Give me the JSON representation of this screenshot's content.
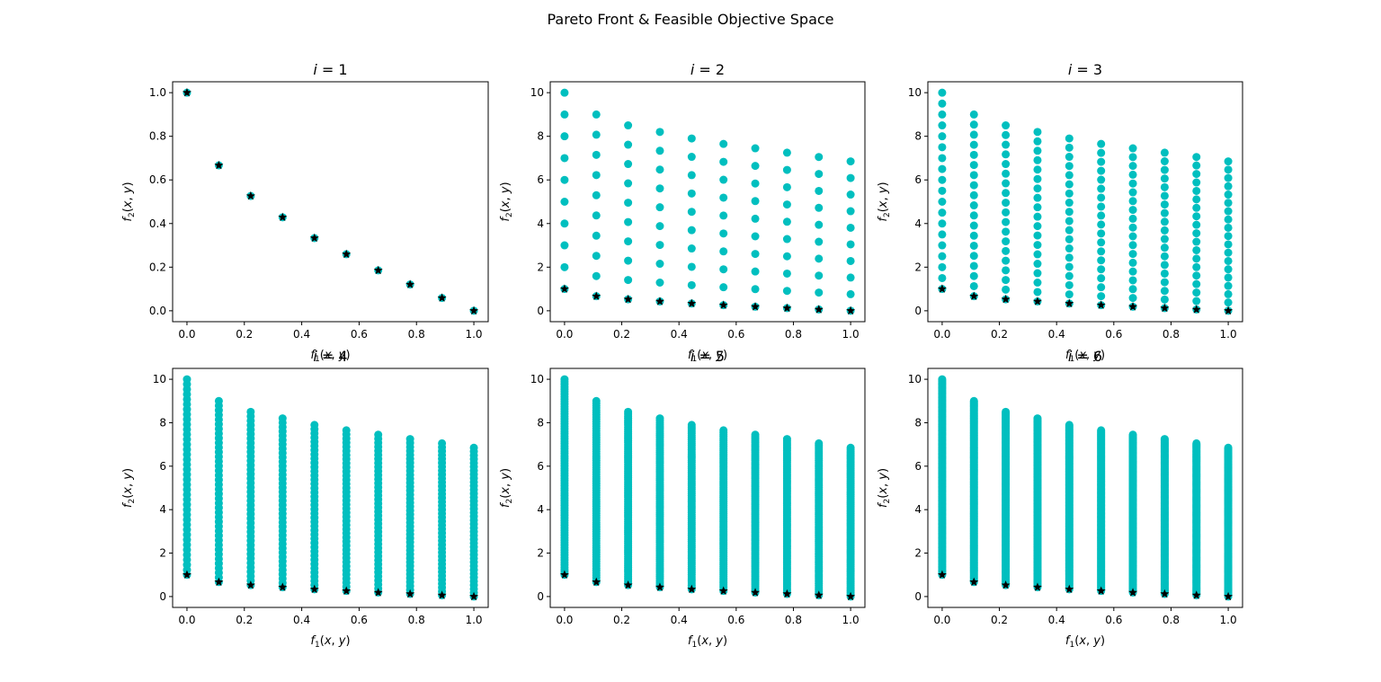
{
  "figure": {
    "title": "Pareto Front & Feasible Objective Space"
  },
  "colors": {
    "feasible": "#00bfbf",
    "pareto": "#000000",
    "axes": "#000000"
  },
  "chart_data": [
    {
      "type": "scatter",
      "title": "i = 1",
      "title_var": "i",
      "title_value": "1",
      "xlabel": "f1(x, y)",
      "ylabel": "f2(x, y)",
      "xlim": [
        -0.05,
        1.05
      ],
      "ylim": [
        -0.05,
        1.05
      ],
      "xticks": [
        "0.0",
        "0.2",
        "0.4",
        "0.6",
        "0.8",
        "1.0"
      ],
      "yticks": [
        "0.0",
        "0.2",
        "0.4",
        "0.6",
        "0.8",
        "1.0"
      ],
      "series": [
        {
          "marker": "circle",
          "x": [
            0.0,
            0.1111,
            0.2222,
            0.3333,
            0.4444,
            0.5556,
            0.6667,
            0.7778,
            0.8889,
            1.0
          ],
          "y": [
            1.0,
            0.6667,
            0.5263,
            0.4286,
            0.3333,
            0.2593,
            0.1852,
            0.1206,
            0.0588,
            0.0
          ]
        },
        {
          "marker": "star",
          "x": [
            0.0,
            0.1111,
            0.2222,
            0.3333,
            0.4444,
            0.5556,
            0.6667,
            0.7778,
            0.8889,
            1.0
          ],
          "y": [
            1.0,
            0.6667,
            0.5263,
            0.4286,
            0.3333,
            0.2593,
            0.1852,
            0.1206,
            0.0588,
            0.0
          ]
        }
      ]
    },
    {
      "type": "scatter",
      "title": "i = 2",
      "title_var": "i",
      "title_value": "2",
      "xlabel": "f1(x, y)",
      "ylabel": "f2(x, y)",
      "xlim": [
        -0.05,
        1.05
      ],
      "ylim": [
        -0.5,
        10.5
      ],
      "xticks": [
        "0.0",
        "0.2",
        "0.4",
        "0.6",
        "0.8",
        "1.0"
      ],
      "yticks": [
        "0",
        "2",
        "4",
        "6",
        "8",
        "10"
      ],
      "columns": {
        "x": [
          0.0,
          0.1111,
          0.2222,
          0.3333,
          0.4444,
          0.5556,
          0.6667,
          0.7778,
          0.8889,
          1.0
        ],
        "y_min": [
          1.0,
          0.6667,
          0.5263,
          0.4286,
          0.3333,
          0.2593,
          0.1852,
          0.1206,
          0.0588,
          0.0
        ],
        "y_max": [
          10.0,
          9.0,
          8.5,
          8.2,
          7.9,
          7.65,
          7.45,
          7.25,
          7.05,
          6.85
        ],
        "points_per_column": 10
      },
      "series": [
        {
          "marker": "circle",
          "data": "columns"
        },
        {
          "marker": "star",
          "x": [
            0.0,
            0.1111,
            0.2222,
            0.3333,
            0.4444,
            0.5556,
            0.6667,
            0.7778,
            0.8889,
            1.0
          ],
          "y": [
            1.0,
            0.6667,
            0.5263,
            0.4286,
            0.3333,
            0.2593,
            0.1852,
            0.1206,
            0.0588,
            0.0
          ]
        }
      ]
    },
    {
      "type": "scatter",
      "title": "i = 3",
      "title_var": "i",
      "title_value": "3",
      "xlabel": "f1(x, y)",
      "ylabel": "f2(x, y)",
      "xlim": [
        -0.05,
        1.05
      ],
      "ylim": [
        -0.5,
        10.5
      ],
      "xticks": [
        "0.0",
        "0.2",
        "0.4",
        "0.6",
        "0.8",
        "1.0"
      ],
      "yticks": [
        "0",
        "2",
        "4",
        "6",
        "8",
        "10"
      ],
      "columns": {
        "x": [
          0.0,
          0.1111,
          0.2222,
          0.3333,
          0.4444,
          0.5556,
          0.6667,
          0.7778,
          0.8889,
          1.0
        ],
        "y_min": [
          1.0,
          0.6667,
          0.5263,
          0.4286,
          0.3333,
          0.2593,
          0.1852,
          0.1206,
          0.0588,
          0.0
        ],
        "y_max": [
          10.0,
          9.0,
          8.5,
          8.2,
          7.9,
          7.65,
          7.45,
          7.25,
          7.05,
          6.85
        ],
        "points_per_column": 19
      },
      "series": [
        {
          "marker": "circle",
          "data": "columns"
        },
        {
          "marker": "star",
          "x": [
            0.0,
            0.1111,
            0.2222,
            0.3333,
            0.4444,
            0.5556,
            0.6667,
            0.7778,
            0.8889,
            1.0
          ],
          "y": [
            1.0,
            0.6667,
            0.5263,
            0.4286,
            0.3333,
            0.2593,
            0.1852,
            0.1206,
            0.0588,
            0.0
          ]
        }
      ]
    },
    {
      "type": "scatter",
      "title": "i = 4",
      "title_var": "i",
      "title_value": "4",
      "xlabel": "f1(x, y)",
      "ylabel": "f2(x, y)",
      "xlim": [
        -0.05,
        1.05
      ],
      "ylim": [
        -0.5,
        10.5
      ],
      "xticks": [
        "0.0",
        "0.2",
        "0.4",
        "0.6",
        "0.8",
        "1.0"
      ],
      "yticks": [
        "0",
        "2",
        "4",
        "6",
        "8",
        "10"
      ],
      "columns": {
        "x": [
          0.0,
          0.1111,
          0.2222,
          0.3333,
          0.4444,
          0.5556,
          0.6667,
          0.7778,
          0.8889,
          1.0
        ],
        "y_min": [
          1.0,
          0.6667,
          0.5263,
          0.4286,
          0.3333,
          0.2593,
          0.1852,
          0.1206,
          0.0588,
          0.0
        ],
        "y_max": [
          10.0,
          9.0,
          8.5,
          8.2,
          7.9,
          7.65,
          7.45,
          7.25,
          7.05,
          6.85
        ],
        "points_per_column": 40
      },
      "series": [
        {
          "marker": "circle",
          "data": "columns"
        },
        {
          "marker": "star",
          "x": [
            0.0,
            0.1111,
            0.2222,
            0.3333,
            0.4444,
            0.5556,
            0.6667,
            0.7778,
            0.8889,
            1.0
          ],
          "y": [
            1.0,
            0.6667,
            0.5263,
            0.4286,
            0.3333,
            0.2593,
            0.1852,
            0.1206,
            0.0588,
            0.0
          ]
        }
      ]
    },
    {
      "type": "scatter",
      "title": "i = 5",
      "title_var": "i",
      "title_value": "5",
      "xlabel": "f1(x, y)",
      "ylabel": "f2(x, y)",
      "xlim": [
        -0.05,
        1.05
      ],
      "ylim": [
        -0.5,
        10.5
      ],
      "xticks": [
        "0.0",
        "0.2",
        "0.4",
        "0.6",
        "0.8",
        "1.0"
      ],
      "yticks": [
        "0",
        "2",
        "4",
        "6",
        "8",
        "10"
      ],
      "columns": {
        "x": [
          0.0,
          0.1111,
          0.2222,
          0.3333,
          0.4444,
          0.5556,
          0.6667,
          0.7778,
          0.8889,
          1.0
        ],
        "y_min": [
          1.0,
          0.6667,
          0.5263,
          0.4286,
          0.3333,
          0.2593,
          0.1852,
          0.1206,
          0.0588,
          0.0
        ],
        "y_max": [
          10.0,
          9.0,
          8.5,
          8.2,
          7.9,
          7.65,
          7.45,
          7.25,
          7.05,
          6.85
        ],
        "points_per_column": 80
      },
      "series": [
        {
          "marker": "circle",
          "data": "columns"
        },
        {
          "marker": "star",
          "x": [
            0.0,
            0.1111,
            0.2222,
            0.3333,
            0.4444,
            0.5556,
            0.6667,
            0.7778,
            0.8889,
            1.0
          ],
          "y": [
            1.0,
            0.6667,
            0.5263,
            0.4286,
            0.3333,
            0.2593,
            0.1852,
            0.1206,
            0.0588,
            0.0
          ]
        }
      ]
    },
    {
      "type": "scatter",
      "title": "i = 6",
      "title_var": "i",
      "title_value": "6",
      "xlabel": "f1(x, y)",
      "ylabel": "f2(x, y)",
      "xlim": [
        -0.05,
        1.05
      ],
      "ylim": [
        -0.5,
        10.5
      ],
      "xticks": [
        "0.0",
        "0.2",
        "0.4",
        "0.6",
        "0.8",
        "1.0"
      ],
      "yticks": [
        "0",
        "2",
        "4",
        "6",
        "8",
        "10"
      ],
      "columns": {
        "x": [
          0.0,
          0.1111,
          0.2222,
          0.3333,
          0.4444,
          0.5556,
          0.6667,
          0.7778,
          0.8889,
          1.0
        ],
        "y_min": [
          1.0,
          0.6667,
          0.5263,
          0.4286,
          0.3333,
          0.2593,
          0.1852,
          0.1206,
          0.0588,
          0.0
        ],
        "y_max": [
          10.0,
          9.0,
          8.5,
          8.2,
          7.9,
          7.65,
          7.45,
          7.25,
          7.05,
          6.85
        ],
        "points_per_column": 160
      },
      "series": [
        {
          "marker": "circle",
          "data": "columns"
        },
        {
          "marker": "star",
          "x": [
            0.0,
            0.1111,
            0.2222,
            0.3333,
            0.4444,
            0.5556,
            0.6667,
            0.7778,
            0.8889,
            1.0
          ],
          "y": [
            1.0,
            0.6667,
            0.5263,
            0.4286,
            0.3333,
            0.2593,
            0.1852,
            0.1206,
            0.0588,
            0.0
          ]
        }
      ]
    }
  ]
}
